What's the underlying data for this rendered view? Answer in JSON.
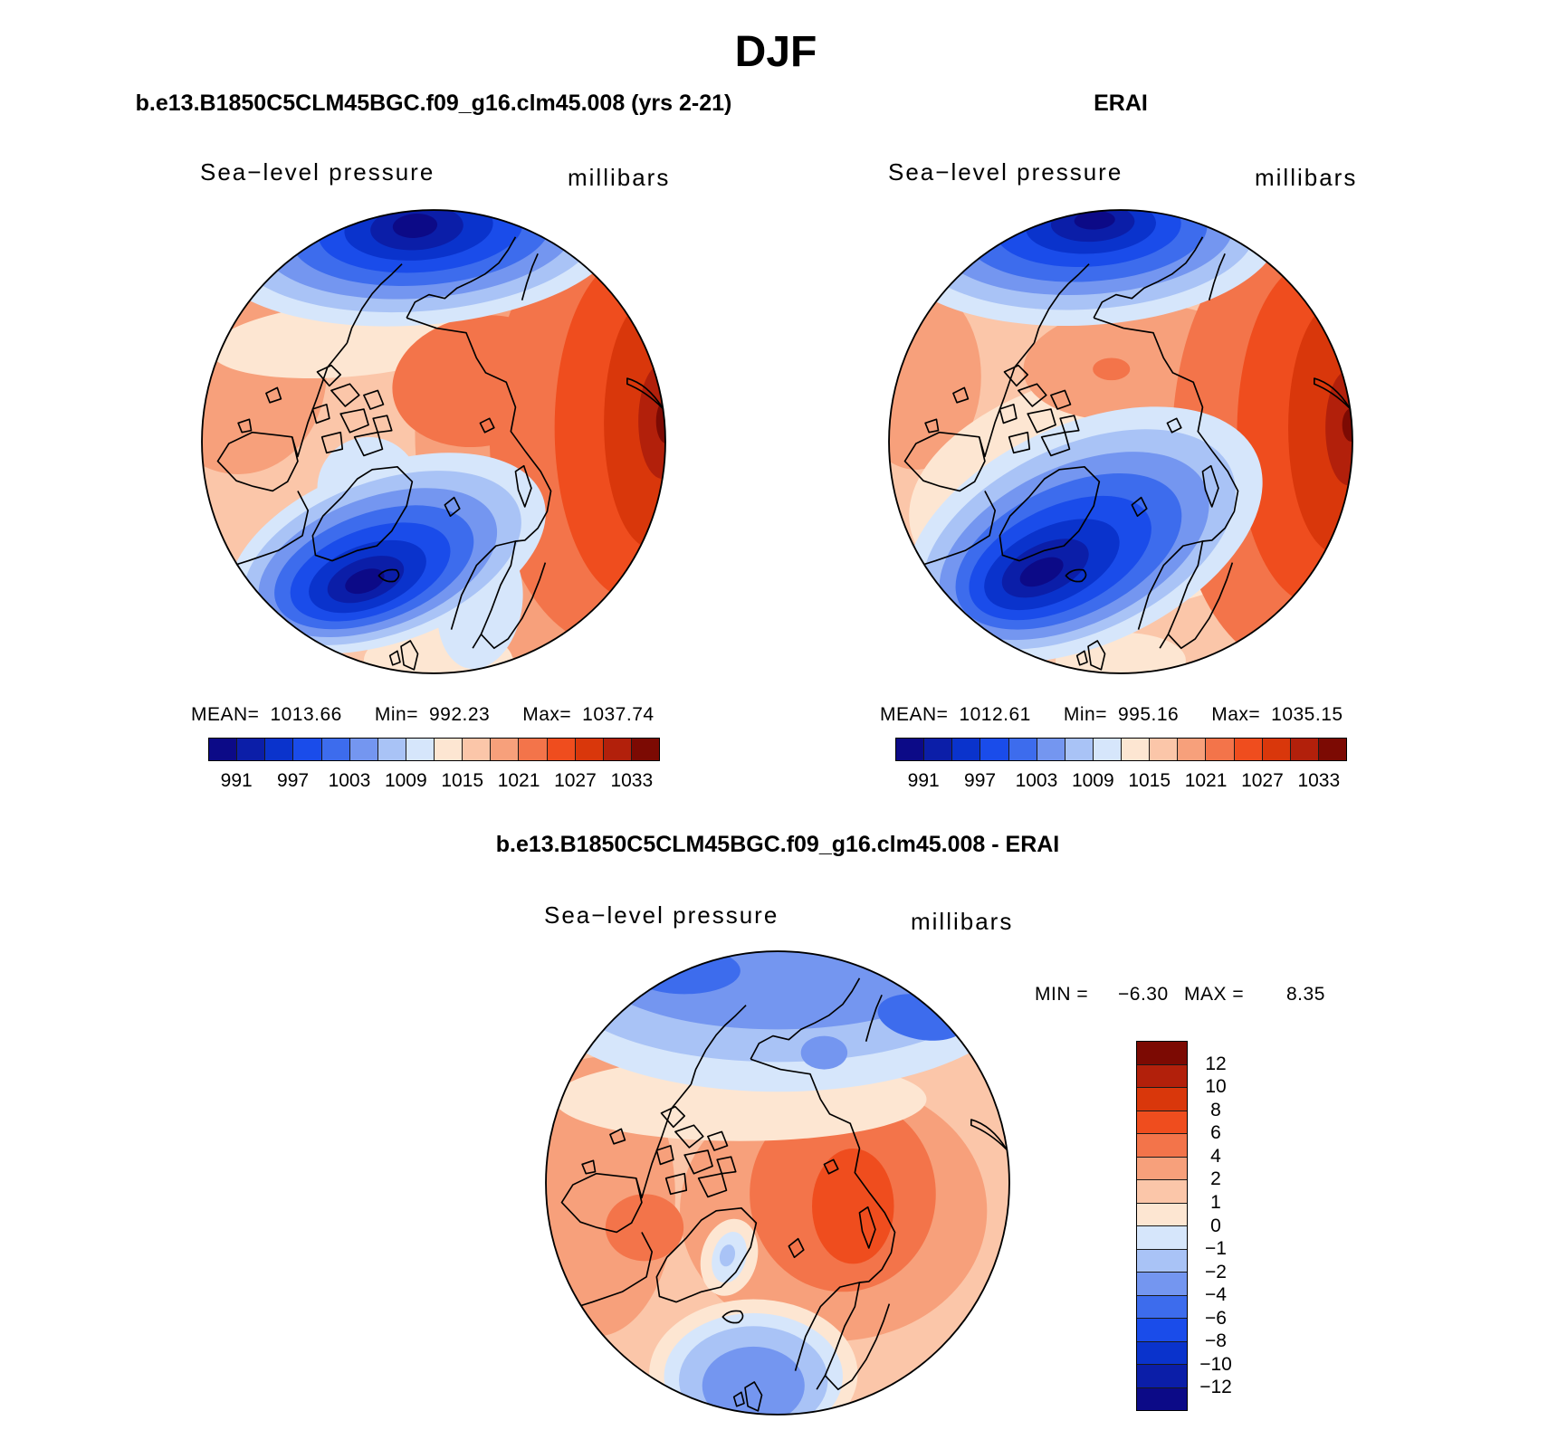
{
  "figure": {
    "title": "DJF"
  },
  "palette": [
    "#0c0a87",
    "#0b1ea8",
    "#0a33cc",
    "#1a4cea",
    "#3d6ced",
    "#7496f0",
    "#a9c3f6",
    "#d6e6fb",
    "#fde6d2",
    "#fbc6a9",
    "#f7a07b",
    "#f3744a",
    "#ef4d1e",
    "#d9370b",
    "#b2200b",
    "#7c0a03"
  ],
  "panels": {
    "model": {
      "subtitle": "b.e13.B1850C5CLM45BGC.f09_g16.clm45.008 (yrs 2-21)",
      "variable": "Sea−level pressure",
      "units": "millibars",
      "stats": {
        "mean_label": "MEAN=",
        "mean": "1013.66",
        "min_label": "Min=",
        "min": "992.23",
        "max_label": "Max=",
        "max": "1037.74"
      },
      "colorbar": {
        "tick_labels": [
          "991",
          "997",
          "1003",
          "1009",
          "1015",
          "1021",
          "1027",
          "1033"
        ]
      }
    },
    "obs": {
      "subtitle": "ERAI",
      "variable": "Sea−level pressure",
      "units": "millibars",
      "stats": {
        "mean_label": "MEAN=",
        "mean": "1012.61",
        "min_label": "Min=",
        "min": "995.16",
        "max_label": "Max=",
        "max": "1035.15"
      },
      "colorbar": {
        "tick_labels": [
          "991",
          "997",
          "1003",
          "1009",
          "1015",
          "1021",
          "1027",
          "1033"
        ]
      }
    },
    "diff": {
      "subtitle": "b.e13.B1850C5CLM45BGC.f09_g16.clm45.008 - ERAI",
      "variable": "Sea−level pressure",
      "units": "millibars",
      "stats": {
        "min_label": "MIN =",
        "min": "−6.30",
        "max_label": "MAX =",
        "max": "8.35"
      },
      "colorbar": {
        "tick_labels": [
          "12",
          "10",
          "8",
          "6",
          "4",
          "2",
          "1",
          "0",
          "−1",
          "−2",
          "−4",
          "−6",
          "−8",
          "−10",
          "−12"
        ]
      }
    }
  }
}
